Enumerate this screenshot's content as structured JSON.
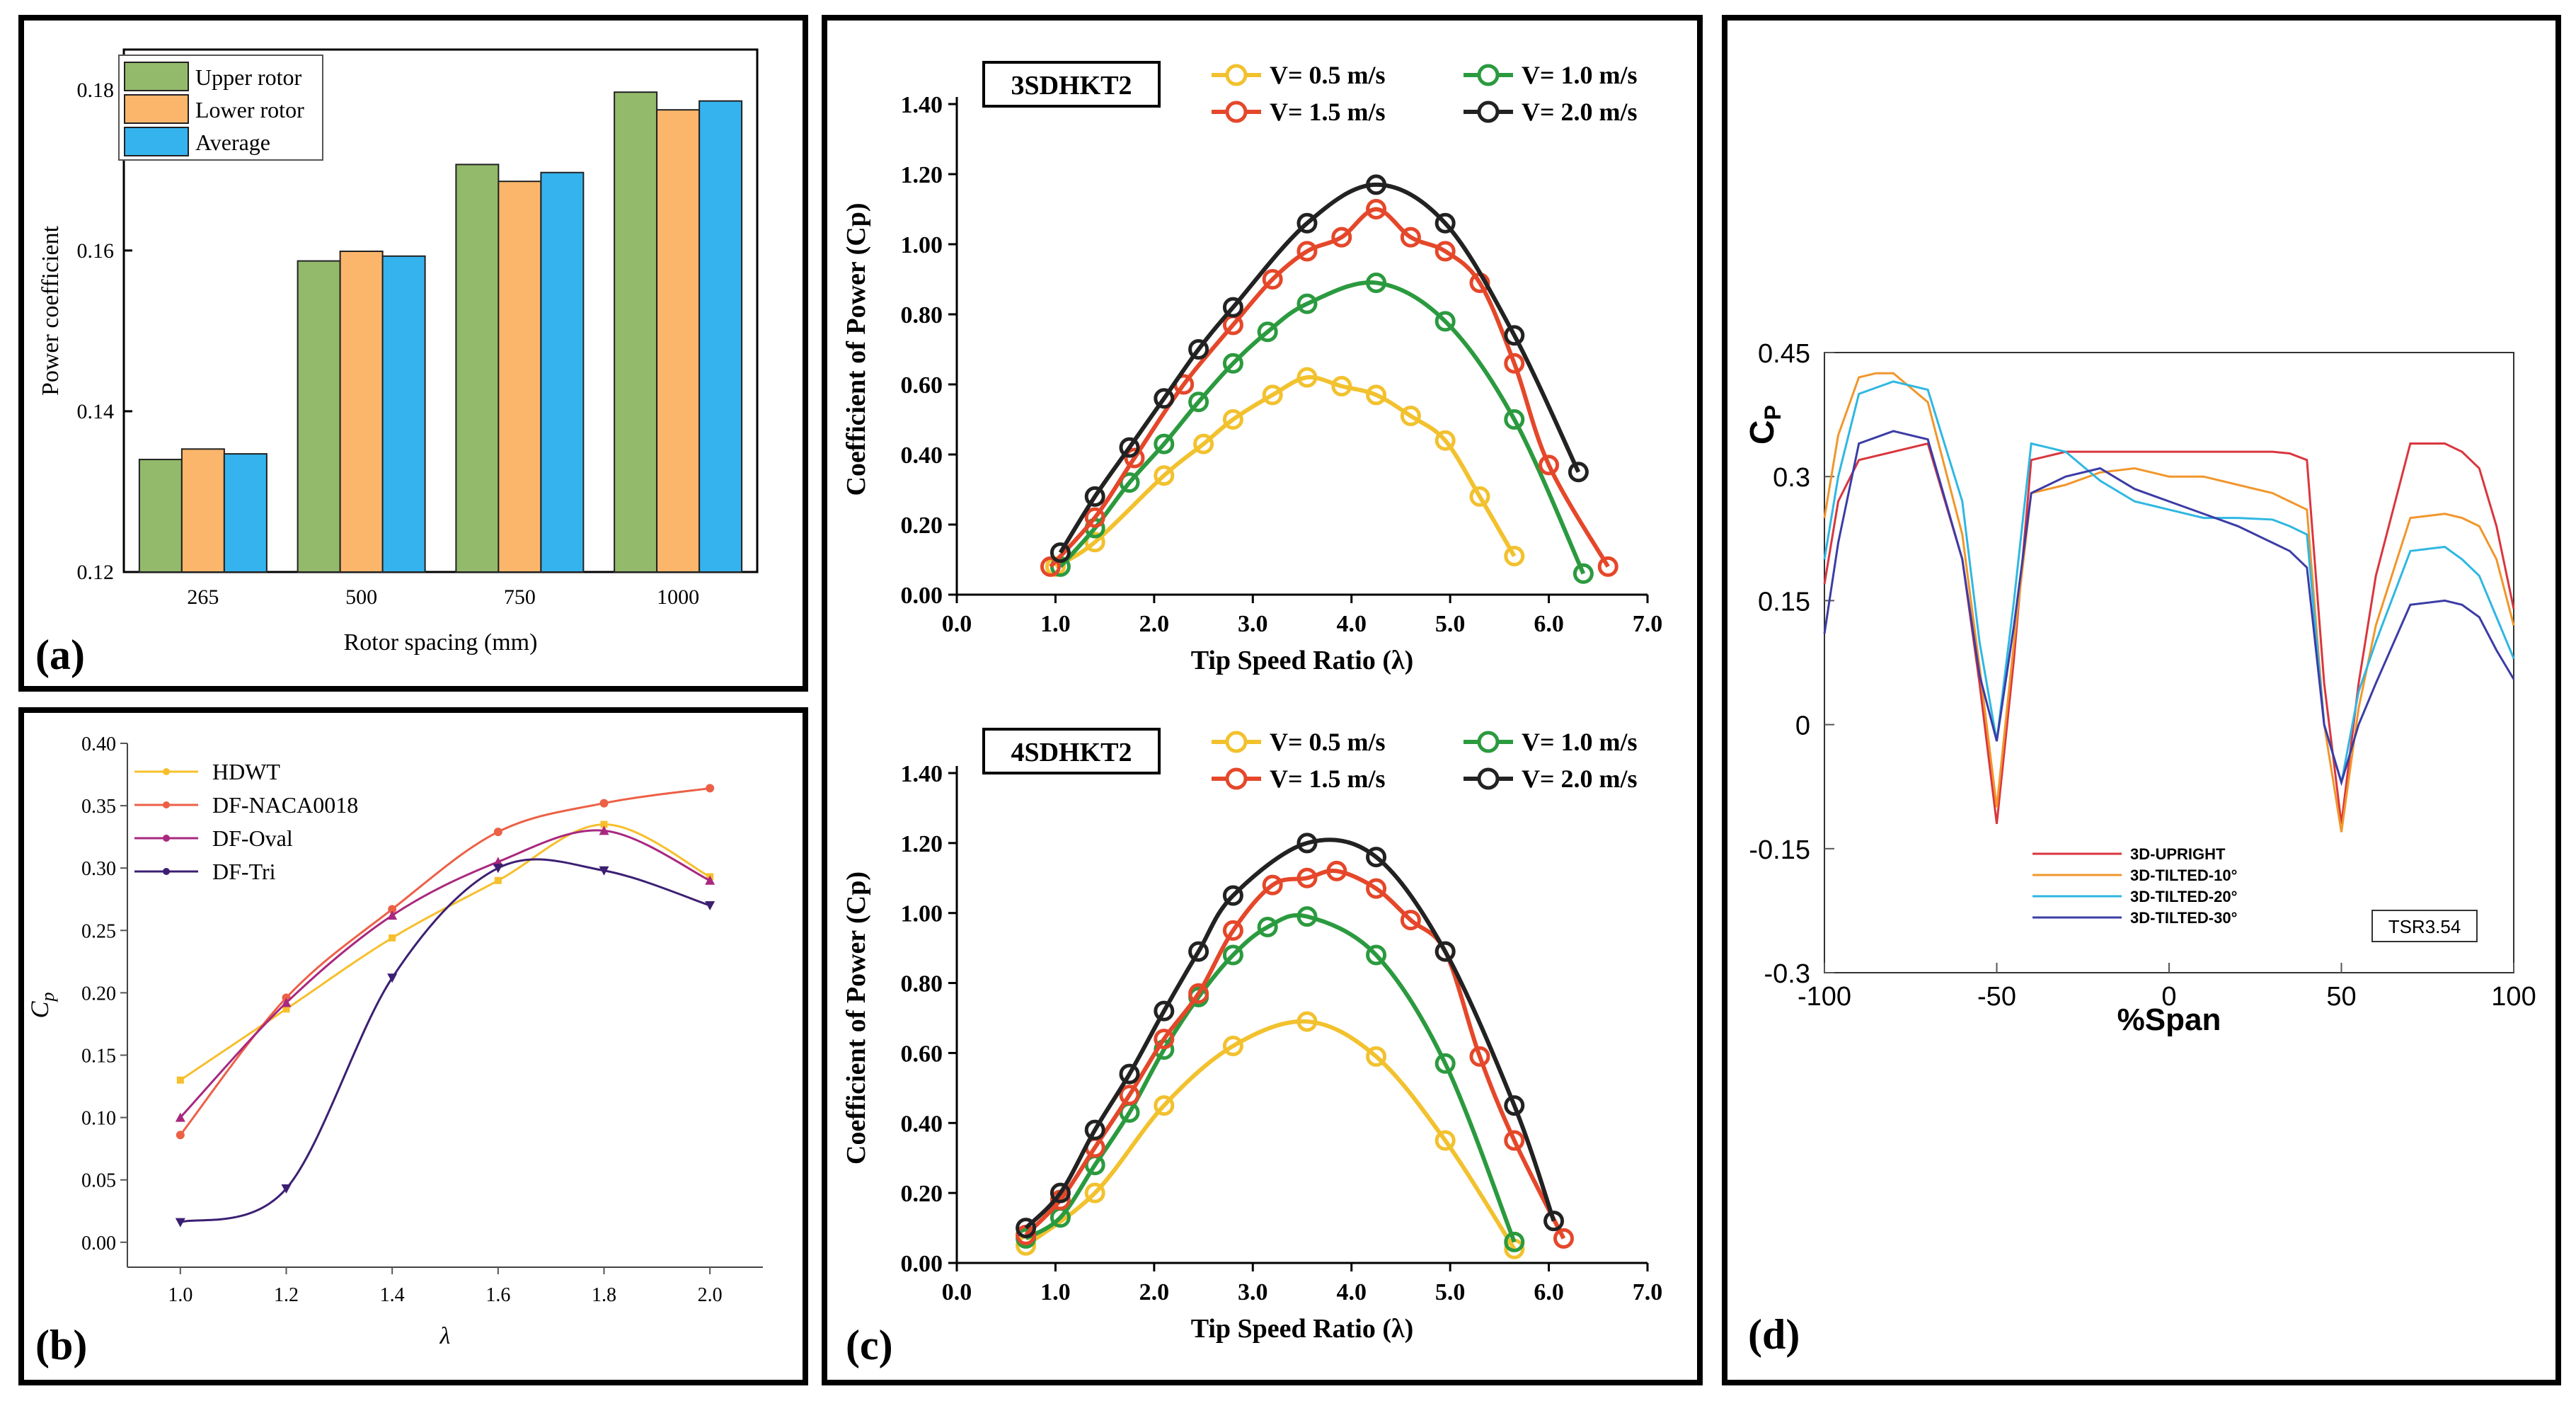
{
  "chart_data": [
    {
      "id": "a",
      "panel_label": "(a)",
      "type": "bar",
      "title": "",
      "xlabel": "Rotor spacing (mm)",
      "ylabel": "Power coefficient",
      "ylim": [
        0.12,
        0.185
      ],
      "yticks": [
        "0.12",
        "0.14",
        "0.16",
        "0.18"
      ],
      "ytick_values": [
        0.12,
        0.14,
        0.16,
        0.18
      ],
      "categories": [
        "265",
        "500",
        "750",
        "1000"
      ],
      "series": [
        {
          "name": "Upper rotor",
          "color": "#93b96b",
          "values": [
            0.134,
            0.1587,
            0.1707,
            0.1797
          ]
        },
        {
          "name": "Lower rotor",
          "color": "#fbb66b",
          "values": [
            0.1353,
            0.1599,
            0.1686,
            0.1775
          ]
        },
        {
          "name": "Average",
          "color": "#35b3ee",
          "values": [
            0.1347,
            0.1593,
            0.1697,
            0.1786
          ]
        }
      ],
      "legend": "top-left"
    },
    {
      "id": "b",
      "panel_label": "(b)",
      "type": "line",
      "xlabel": "λ",
      "ylabel": "C",
      "ylabel_sub": "p",
      "xlim": [
        0.9,
        2.1
      ],
      "ylim": [
        -0.02,
        0.4
      ],
      "xticks": [
        "1.0",
        "1.2",
        "1.4",
        "1.6",
        "1.8",
        "2.0"
      ],
      "xtick_values": [
        1.0,
        1.2,
        1.4,
        1.6,
        1.8,
        2.0
      ],
      "yticks": [
        "0.00",
        "0.05",
        "0.10",
        "0.15",
        "0.20",
        "0.25",
        "0.30",
        "0.35",
        "0.40"
      ],
      "ytick_values": [
        0.0,
        0.05,
        0.1,
        0.15,
        0.2,
        0.25,
        0.3,
        0.35,
        0.4
      ],
      "x": [
        1.0,
        1.2,
        1.4,
        1.6,
        1.8,
        2.0
      ],
      "series": [
        {
          "name": "HDWT",
          "color": "#f6bf2c",
          "marker": "square",
          "values": [
            0.13,
            0.187,
            0.244,
            0.29,
            0.335,
            0.293
          ]
        },
        {
          "name": "DF-NACA0018",
          "color": "#ec6046",
          "marker": "circle",
          "values": [
            0.086,
            0.196,
            0.267,
            0.329,
            0.352,
            0.364
          ]
        },
        {
          "name": "DF-Oval",
          "color": "#a8287f",
          "marker": "triangle-up",
          "values": [
            0.1,
            0.192,
            0.262,
            0.305,
            0.33,
            0.29
          ]
        },
        {
          "name": "DF-Tri",
          "color": "#3c1f73",
          "marker": "triangle-down",
          "values": [
            0.016,
            0.043,
            0.212,
            0.3,
            0.298,
            0.27
          ]
        }
      ],
      "legend": "top-left"
    },
    {
      "id": "c-top",
      "panel_label": "",
      "type": "line",
      "title": "3SDHKT2",
      "xlabel": "Tip Speed Ratio (λ)",
      "ylabel": "Coefficient of Power (Cp)",
      "xlim": [
        0.0,
        7.0
      ],
      "ylim": [
        0.0,
        1.4
      ],
      "xticks": [
        "0.0",
        "1.0",
        "2.0",
        "3.0",
        "4.0",
        "5.0",
        "6.0",
        "7.0"
      ],
      "xtick_values": [
        0,
        1,
        2,
        3,
        4,
        5,
        6,
        7
      ],
      "yticks": [
        "0.00",
        "0.20",
        "0.40",
        "0.60",
        "0.80",
        "1.00",
        "1.20",
        "1.40"
      ],
      "ytick_values": [
        0,
        0.2,
        0.4,
        0.6,
        0.8,
        1.0,
        1.2,
        1.4
      ],
      "series": [
        {
          "name": "V= 0.5 m/s",
          "color": "#f2c12e",
          "x": [
            1.0,
            1.4,
            2.1,
            2.5,
            2.8,
            3.2,
            3.55,
            3.9,
            4.25,
            4.6,
            4.95,
            5.3,
            5.65
          ],
          "y": [
            0.08,
            0.15,
            0.34,
            0.43,
            0.5,
            0.57,
            0.62,
            0.595,
            0.57,
            0.51,
            0.44,
            0.28,
            0.11
          ]
        },
        {
          "name": "V= 1.0 m/s",
          "color": "#2b9a3f",
          "x": [
            1.05,
            1.4,
            1.75,
            2.1,
            2.45,
            2.8,
            3.15,
            3.55,
            4.25,
            4.95,
            5.65,
            6.35
          ],
          "y": [
            0.08,
            0.19,
            0.32,
            0.43,
            0.55,
            0.66,
            0.75,
            0.83,
            0.89,
            0.78,
            0.5,
            0.06
          ]
        },
        {
          "name": "V= 1.5 m/s",
          "color": "#e5472a",
          "x": [
            0.95,
            1.4,
            1.8,
            2.3,
            2.8,
            3.2,
            3.55,
            3.9,
            4.25,
            4.6,
            4.95,
            5.3,
            5.65,
            6.0,
            6.6
          ],
          "y": [
            0.08,
            0.22,
            0.39,
            0.6,
            0.77,
            0.9,
            0.98,
            1.02,
            1.1,
            1.02,
            0.98,
            0.89,
            0.66,
            0.37,
            0.08
          ]
        },
        {
          "name": "V= 2.0 m/s",
          "color": "#222222",
          "x": [
            1.05,
            1.4,
            1.75,
            2.1,
            2.45,
            2.8,
            3.55,
            4.25,
            4.95,
            5.65,
            6.3
          ],
          "y": [
            0.12,
            0.28,
            0.42,
            0.56,
            0.7,
            0.82,
            1.06,
            1.17,
            1.06,
            0.74,
            0.35
          ]
        }
      ],
      "legend": "top"
    },
    {
      "id": "c-bottom",
      "panel_label": "(c)",
      "type": "line",
      "title": "4SDHKT2",
      "xlabel": "Tip Speed Ratio (λ)",
      "ylabel": "Coefficient of Power (Cp)",
      "xlim": [
        0.0,
        7.0
      ],
      "ylim": [
        0.0,
        1.4
      ],
      "xticks": [
        "0.0",
        "1.0",
        "2.0",
        "3.0",
        "4.0",
        "5.0",
        "6.0",
        "7.0"
      ],
      "xtick_values": [
        0,
        1,
        2,
        3,
        4,
        5,
        6,
        7
      ],
      "yticks": [
        "0.00",
        "0.20",
        "0.40",
        "0.60",
        "0.80",
        "1.00",
        "1.20",
        "1.40"
      ],
      "ytick_values": [
        0,
        0.2,
        0.4,
        0.6,
        0.8,
        1.0,
        1.2,
        1.4
      ],
      "series": [
        {
          "name": "V= 0.5 m/s",
          "color": "#f2c12e",
          "x": [
            0.7,
            1.4,
            2.1,
            2.8,
            3.55,
            4.25,
            4.95,
            5.65
          ],
          "y": [
            0.05,
            0.2,
            0.45,
            0.62,
            0.69,
            0.59,
            0.35,
            0.04
          ]
        },
        {
          "name": "V= 1.0 m/s",
          "color": "#2b9a3f",
          "x": [
            0.7,
            1.05,
            1.4,
            1.75,
            2.1,
            2.45,
            2.8,
            3.15,
            3.55,
            4.25,
            4.95,
            5.65
          ],
          "y": [
            0.07,
            0.13,
            0.28,
            0.43,
            0.61,
            0.76,
            0.88,
            0.96,
            0.99,
            0.88,
            0.57,
            0.06
          ]
        },
        {
          "name": "V= 1.5 m/s",
          "color": "#e5472a",
          "x": [
            0.7,
            1.05,
            1.4,
            1.75,
            2.1,
            2.45,
            2.8,
            3.2,
            3.55,
            3.85,
            4.25,
            4.6,
            4.95,
            5.3,
            5.65,
            6.15
          ],
          "y": [
            0.08,
            0.18,
            0.33,
            0.48,
            0.64,
            0.77,
            0.95,
            1.08,
            1.1,
            1.12,
            1.07,
            0.98,
            0.89,
            0.59,
            0.35,
            0.07
          ]
        },
        {
          "name": "V= 2.0 m/s",
          "color": "#222222",
          "x": [
            0.7,
            1.05,
            1.4,
            1.75,
            2.1,
            2.45,
            2.8,
            3.55,
            4.25,
            4.95,
            5.65,
            6.05
          ],
          "y": [
            0.1,
            0.2,
            0.38,
            0.54,
            0.72,
            0.89,
            1.05,
            1.2,
            1.16,
            0.89,
            0.45,
            0.12
          ]
        }
      ],
      "legend": "top"
    },
    {
      "id": "d",
      "panel_label": "(d)",
      "type": "line",
      "xlabel": "%Span",
      "ylabel": "C",
      "ylabel_sub": "P",
      "annotation": "TSR3.54",
      "xlim": [
        -100,
        100
      ],
      "ylim": [
        -0.3,
        0.45
      ],
      "xticks": [
        "-100",
        "-50",
        "0",
        "50",
        "100"
      ],
      "xtick_values": [
        -100,
        -50,
        0,
        50,
        100
      ],
      "yticks": [
        "-0.3",
        "-0.15",
        "0",
        "0.15",
        "0.3",
        "0.45"
      ],
      "ytick_values": [
        -0.3,
        -0.15,
        0,
        0.15,
        0.3,
        0.45
      ],
      "series": [
        {
          "name": "3D-UPRIGHT",
          "color": "#d9363e",
          "x": [
            -100,
            -96,
            -90,
            -80,
            -70,
            -60,
            -55,
            -50,
            -45,
            -40,
            -30,
            -20,
            -10,
            0,
            10,
            20,
            30,
            35,
            40,
            45,
            50,
            55,
            60,
            70,
            80,
            85,
            90,
            95,
            100
          ],
          "y": [
            0.17,
            0.27,
            0.32,
            0.33,
            0.34,
            0.2,
            0.05,
            -0.12,
            0.08,
            0.32,
            0.33,
            0.33,
            0.33,
            0.33,
            0.33,
            0.33,
            0.33,
            0.328,
            0.32,
            0.05,
            -0.12,
            0.05,
            0.18,
            0.34,
            0.34,
            0.33,
            0.31,
            0.24,
            0.14
          ]
        },
        {
          "name": "3D-TILTED-10°",
          "color": "#f1962b",
          "x": [
            -100,
            -96,
            -90,
            -85,
            -80,
            -70,
            -60,
            -55,
            -50,
            -45,
            -40,
            -30,
            -20,
            -10,
            0,
            10,
            20,
            30,
            35,
            40,
            45,
            50,
            55,
            60,
            70,
            80,
            85,
            90,
            95,
            100
          ],
          "y": [
            0.25,
            0.35,
            0.42,
            0.425,
            0.425,
            0.39,
            0.23,
            0.07,
            -0.1,
            0.1,
            0.28,
            0.29,
            0.305,
            0.31,
            0.3,
            0.3,
            0.29,
            0.28,
            0.27,
            0.26,
            0.0,
            -0.13,
            0.02,
            0.12,
            0.25,
            0.255,
            0.25,
            0.24,
            0.2,
            0.12
          ]
        },
        {
          "name": "3D-TILTED-20°",
          "color": "#2fb7e2",
          "x": [
            -100,
            -96,
            -90,
            -80,
            -70,
            -60,
            -55,
            -50,
            -45,
            -40,
            -35,
            -30,
            -20,
            -10,
            0,
            10,
            20,
            30,
            35,
            40,
            45,
            50,
            55,
            60,
            70,
            80,
            85,
            90,
            95,
            100
          ],
          "y": [
            0.2,
            0.3,
            0.4,
            0.415,
            0.405,
            0.27,
            0.1,
            -0.02,
            0.15,
            0.34,
            0.335,
            0.33,
            0.295,
            0.27,
            0.26,
            0.25,
            0.25,
            0.248,
            0.24,
            0.23,
            0.0,
            -0.07,
            0.04,
            0.1,
            0.21,
            0.215,
            0.2,
            0.18,
            0.13,
            0.08
          ]
        },
        {
          "name": "3D-TILTED-30°",
          "color": "#3c3ca6",
          "x": [
            -100,
            -96,
            -90,
            -80,
            -70,
            -60,
            -55,
            -50,
            -45,
            -40,
            -35,
            -30,
            -20,
            -10,
            0,
            10,
            20,
            30,
            35,
            40,
            45,
            50,
            55,
            60,
            70,
            80,
            85,
            90,
            95,
            100
          ],
          "y": [
            0.11,
            0.22,
            0.34,
            0.355,
            0.345,
            0.2,
            0.06,
            -0.02,
            0.12,
            0.28,
            0.29,
            0.3,
            0.31,
            0.285,
            0.27,
            0.255,
            0.24,
            0.22,
            0.21,
            0.19,
            0.0,
            -0.07,
            0.0,
            0.05,
            0.145,
            0.15,
            0.145,
            0.13,
            0.09,
            0.055
          ]
        }
      ],
      "legend": "bottom-left"
    }
  ]
}
